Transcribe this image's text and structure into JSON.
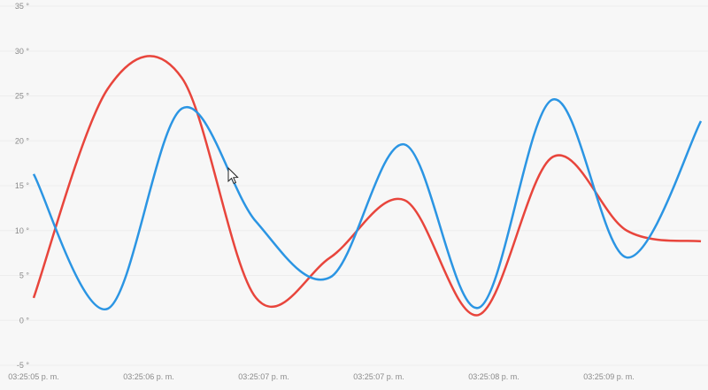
{
  "chart_data": {
    "type": "line",
    "title": "",
    "xlabel": "",
    "ylabel": "",
    "ylim": [
      -5,
      35
    ],
    "y_ticks": [
      {
        "value": 35,
        "label": "35 °"
      },
      {
        "value": 30,
        "label": "30 °"
      },
      {
        "value": 25,
        "label": "25 °"
      },
      {
        "value": 20,
        "label": "20 °"
      },
      {
        "value": 15,
        "label": "15 °"
      },
      {
        "value": 10,
        "label": "10 °"
      },
      {
        "value": 5,
        "label": "5 °"
      },
      {
        "value": 0,
        "label": "0 °"
      },
      {
        "value": -5,
        "label": "-5 °"
      }
    ],
    "x_ticks": [
      "03:25:05 p. m.",
      "03:25:06 p. m.",
      "03:25:07 p. m.",
      "03:25:07 p. m.",
      "03:25:08 p. m.",
      "03:25:09 p. m."
    ],
    "grid": true,
    "legend": "none",
    "series": [
      {
        "color": "#e8453c",
        "values": [
          2.5,
          25.8,
          27.0,
          2.5,
          7.0,
          13.4,
          0.6,
          18.2,
          10.0,
          8.8
        ]
      },
      {
        "color": "#2b95e3",
        "values": [
          16.3,
          1.3,
          23.6,
          11.0,
          4.8,
          19.6,
          1.4,
          24.6,
          7.0,
          22.2
        ]
      }
    ]
  },
  "cursor_icon": "mouse-pointer-icon"
}
